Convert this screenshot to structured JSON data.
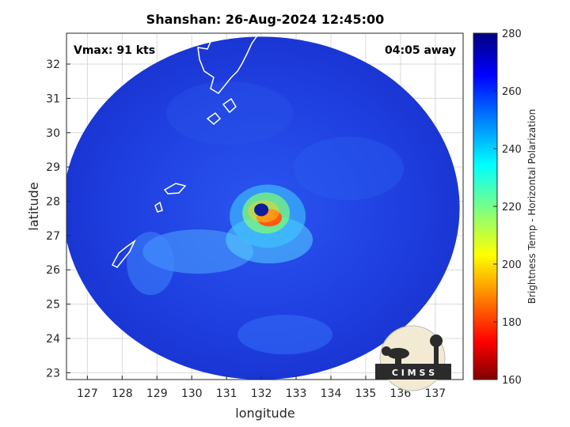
{
  "chart_data": {
    "type": "heatmap",
    "title": "Shanshan: 26-Aug-2024 12:45:00",
    "xlabel": "longitude",
    "ylabel": "latitude",
    "xlim": [
      126.4,
      137.8
    ],
    "ylim": [
      22.8,
      32.9
    ],
    "x_ticks": [
      127,
      128,
      129,
      130,
      131,
      132,
      133,
      134,
      135,
      136,
      137
    ],
    "y_ticks": [
      23,
      24,
      25,
      26,
      27,
      28,
      29,
      30,
      31,
      32
    ],
    "grid": true,
    "annotations": {
      "vmax": "Vmax: 91 kts",
      "time_away": "04:05 away"
    },
    "colorbar": {
      "label": "Brightness Temp - Horizontal Polarization",
      "min": 160,
      "max": 280,
      "ticks": [
        160,
        180,
        200,
        220,
        240,
        260,
        280
      ],
      "colormap": "jet"
    },
    "storm_center": {
      "lon": 132.0,
      "lat": 27.75
    },
    "swath": {
      "center_lon": 132.0,
      "center_lat": 27.8,
      "radius_lon": 5.7,
      "radius_lat": 5.0
    },
    "logo_text": "C I M S S"
  },
  "colors": {
    "background_field": "#1f3fe0",
    "land_outline": "#ffffff",
    "grid": "#d9d9d9"
  }
}
